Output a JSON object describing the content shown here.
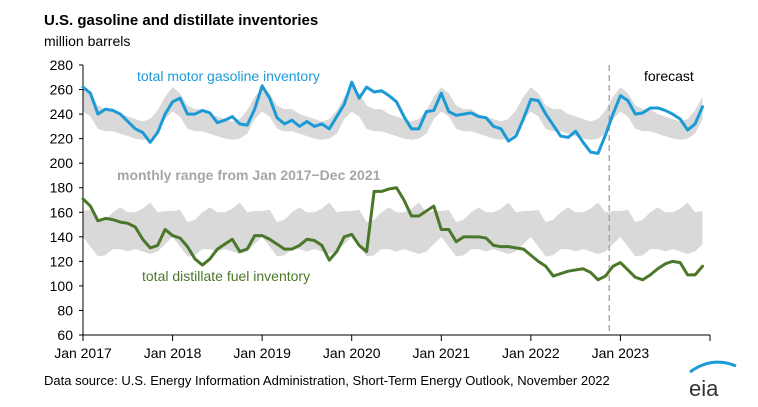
{
  "chart_data": {
    "type": "line",
    "title": "U.S. gasoline and distillate inventories",
    "ylabel": "million barrels",
    "xlabel": "",
    "ylim": [
      60,
      280
    ],
    "yticks": [
      60,
      80,
      100,
      120,
      140,
      160,
      180,
      200,
      220,
      240,
      260,
      280
    ],
    "x_start": "2017-01",
    "x_end": "2023-12",
    "xtick_labels": [
      "Jan 2017",
      "Jan 2018",
      "Jan 2019",
      "Jan 2020",
      "Jan 2021",
      "Jan 2022",
      "Jan 2023"
    ],
    "forecast_start_month": 71,
    "forecast_label": "forecast",
    "range_label": "monthly range from Jan 2017−Dec 2021",
    "bands": {
      "gasoline_high": [
        262,
        257,
        247,
        244,
        244,
        240,
        238,
        236,
        234,
        236,
        243,
        254
      ],
      "gasoline_low": [
        242,
        238,
        228,
        226,
        226,
        224,
        222,
        220,
        219,
        220,
        224,
        236
      ],
      "distillate_high": [
        161,
        162,
        152,
        154,
        160,
        164,
        160,
        160,
        163,
        168,
        160,
        161
      ],
      "distillate_low": [
        140,
        132,
        124,
        125,
        130,
        130,
        128,
        130,
        128,
        126,
        128,
        134
      ]
    },
    "series": [
      {
        "name": "total motor gasoline inventory",
        "color": "#1b9ad6",
        "values": [
          262,
          257,
          240,
          244,
          243,
          240,
          234,
          228,
          225,
          217,
          225,
          240,
          250,
          253,
          240,
          240,
          243,
          241,
          233,
          235,
          238,
          232,
          231,
          244,
          263,
          253,
          237,
          232,
          235,
          230,
          234,
          230,
          232,
          228,
          238,
          248,
          266,
          253,
          262,
          258,
          259,
          255,
          250,
          238,
          228,
          228,
          242,
          243,
          257,
          242,
          239,
          240,
          241,
          238,
          237,
          230,
          228,
          218,
          222,
          236,
          252,
          251,
          240,
          231,
          222,
          221,
          226,
          217,
          209,
          208,
          223,
          240,
          255,
          251,
          240,
          241,
          245,
          245,
          243,
          240,
          236,
          227,
          232,
          246
        ]
      },
      {
        "name": "total distillate fuel inventory",
        "color": "#4a7729",
        "values": [
          171,
          165,
          153,
          155,
          154,
          152,
          151,
          148,
          138,
          131,
          133,
          146,
          141,
          139,
          132,
          122,
          117,
          122,
          130,
          134,
          138,
          128,
          130,
          141,
          141,
          138,
          134,
          130,
          130,
          133,
          138,
          137,
          133,
          121,
          128,
          140,
          142,
          133,
          128,
          177,
          177,
          179,
          180,
          170,
          157,
          157,
          161,
          165,
          146,
          146,
          136,
          140,
          140,
          140,
          139,
          133,
          132,
          132,
          131,
          130,
          125,
          120,
          116,
          108,
          110,
          112,
          113,
          114,
          111,
          105,
          108,
          116,
          119,
          113,
          107,
          105,
          109,
          114,
          118,
          120,
          119,
          109,
          109,
          116
        ]
      }
    ],
    "source": "Data source: U.S. Energy Information Administration, Short-Term Energy Outlook, November 2022",
    "logo_text": "eia"
  }
}
